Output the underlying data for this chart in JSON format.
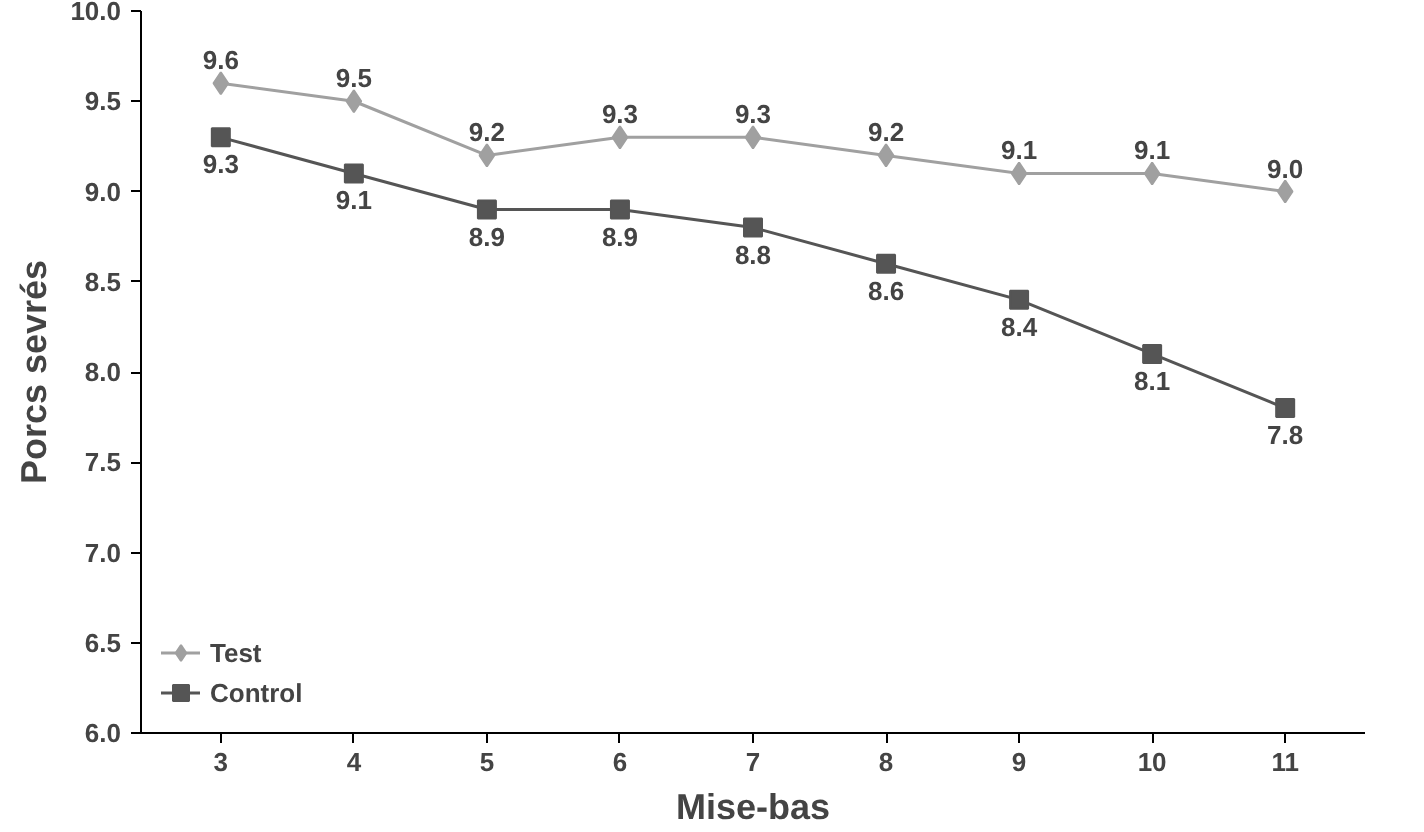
{
  "chart_data": {
    "type": "line",
    "xlabel": "Mise-bas",
    "ylabel": "Porcs sevrés",
    "categories": [
      "3",
      "4",
      "5",
      "6",
      "7",
      "8",
      "9",
      "10",
      "11"
    ],
    "series": [
      {
        "name": "Test",
        "color": "#a0a0a0",
        "marker": "diamond",
        "values": [
          9.6,
          9.5,
          9.2,
          9.3,
          9.3,
          9.2,
          9.1,
          9.1,
          9.0
        ],
        "value_labels": [
          "9.6",
          "9.5",
          "9.2",
          "9.3",
          "9.3",
          "9.2",
          "9.1",
          "9.1",
          "9.0"
        ]
      },
      {
        "name": "Control",
        "color": "#555555",
        "marker": "square",
        "values": [
          9.3,
          9.1,
          8.9,
          8.9,
          8.8,
          8.6,
          8.4,
          8.1,
          7.8
        ],
        "value_labels": [
          "9.3",
          "9.1",
          "8.9",
          "8.9",
          "8.8",
          "8.6",
          "8.4",
          "8.1",
          "7.8"
        ]
      }
    ],
    "ylim": [
      6.0,
      10.0
    ],
    "yticks": [
      {
        "value": 6.0,
        "label": "6.0"
      },
      {
        "value": 6.5,
        "label": "6.5"
      },
      {
        "value": 7.0,
        "label": "7.0"
      },
      {
        "value": 7.5,
        "label": "7.5"
      },
      {
        "value": 8.0,
        "label": "8.0"
      },
      {
        "value": 8.5,
        "label": "8.5"
      },
      {
        "value": 9.0,
        "label": "9.0"
      },
      {
        "value": 9.5,
        "label": "9.5"
      },
      {
        "value": 10.0,
        "label": "10.0"
      }
    ],
    "grid": false,
    "legend": "bottom left",
    "line_style": "solid"
  }
}
